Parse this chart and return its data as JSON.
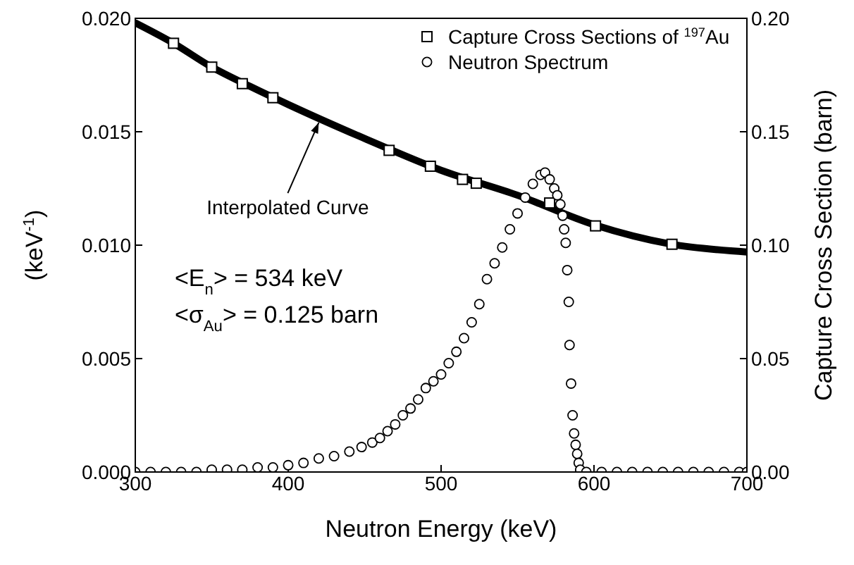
{
  "chart_data": {
    "type": "scatter",
    "xlabel": "Neutron Energy (keV)",
    "ylabel": "(keV$^{-1}$)",
    "y2label": "Capture Cross Section (barn)",
    "xlim": [
      300,
      700
    ],
    "xticks": [
      300,
      400,
      500,
      600,
      700
    ],
    "ylim": [
      0,
      0.02
    ],
    "yticks": [
      {
        "value": 0,
        "label": "0.000"
      },
      {
        "value": 0.005,
        "label": "0.005"
      },
      {
        "value": 0.01,
        "label": "0.010"
      },
      {
        "value": 0.015,
        "label": "0.015"
      },
      {
        "value": 0.02,
        "label": "0.020"
      }
    ],
    "y2lim": [
      0,
      0.2
    ],
    "y2ticks": [
      {
        "value": 0,
        "label": "0.00"
      },
      {
        "value": 0.05,
        "label": "0.05"
      },
      {
        "value": 0.1,
        "label": "0.10"
      },
      {
        "value": 0.15,
        "label": "0.15"
      },
      {
        "value": 0.2,
        "label": "0.20"
      }
    ],
    "legend": "top right",
    "grid": false,
    "series": [
      {
        "type": "line",
        "axis": "y2",
        "color": "#000000",
        "marker": "none",
        "line_style": "solid",
        "x": [
          300,
          325,
          350,
          375,
          400,
          450,
          500,
          550,
          600,
          650,
          700
        ],
        "values": [
          0.198,
          0.189,
          0.1785,
          0.17,
          0.162,
          0.147,
          0.133,
          0.122,
          0.109,
          0.1005,
          0.097
        ]
      },
      {
        "axis": "y2",
        "name": "Capture Cross Sections of $^{197}$Au",
        "color": "#000000",
        "marker": "square",
        "x": [
          325,
          350,
          370,
          390,
          466,
          493,
          514,
          523,
          571,
          601,
          651
        ],
        "values": [
          0.189,
          0.1785,
          0.1712,
          0.165,
          0.1418,
          0.1348,
          0.129,
          0.1273,
          0.1186,
          0.1085,
          0.1004
        ]
      },
      {
        "name": "Neutron Spectrum",
        "color": "#000000",
        "marker": "circle",
        "x": [
          300,
          310,
          320,
          330,
          340,
          350,
          360,
          370,
          380,
          390,
          400,
          410,
          420,
          430,
          440,
          448,
          455,
          460,
          465,
          470,
          475,
          480,
          485,
          490,
          495,
          500,
          505,
          510,
          515,
          520,
          525,
          530,
          535,
          540,
          545,
          550,
          555,
          560,
          565,
          568,
          571,
          574,
          576,
          578,
          579.5,
          580.5,
          581.5,
          582.5,
          583.5,
          584,
          585,
          586,
          587,
          588,
          589,
          590,
          591,
          595,
          605,
          615,
          625,
          635,
          645,
          655,
          665,
          675,
          685,
          695,
          700
        ],
        "values": [
          0,
          0,
          0,
          0,
          0,
          0.0001,
          0.0001,
          0.0001,
          0.0002,
          0.0002,
          0.0003,
          0.0004,
          0.0006,
          0.0007,
          0.0009,
          0.0011,
          0.0013,
          0.0015,
          0.0018,
          0.0021,
          0.0025,
          0.0028,
          0.0032,
          0.0037,
          0.004,
          0.0043,
          0.0048,
          0.0053,
          0.0059,
          0.0066,
          0.0074,
          0.0085,
          0.0092,
          0.0099,
          0.0107,
          0.0114,
          0.0121,
          0.0127,
          0.0131,
          0.0132,
          0.0129,
          0.0125,
          0.0122,
          0.0118,
          0.0113,
          0.0107,
          0.0101,
          0.0089,
          0.0075,
          0.0056,
          0.0039,
          0.0025,
          0.0017,
          0.0012,
          0.0008,
          0.0004,
          0.0001,
          0,
          0,
          0,
          0,
          0,
          0,
          0,
          0,
          0,
          0,
          0,
          0
        ]
      }
    ],
    "annotations": [
      {
        "text": "Interpolated Curve",
        "x": 420,
        "y": 0.0154
      },
      "<E$_{n}$> = 534 keV",
      "<σ$_{Au}$> = 0.125 barn"
    ]
  }
}
